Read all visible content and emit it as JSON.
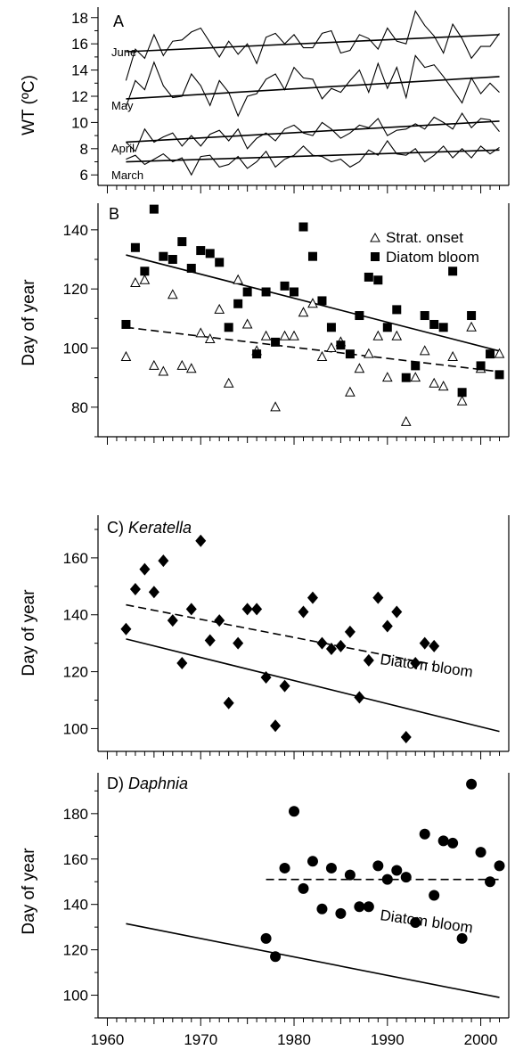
{
  "chart_data": [
    {
      "panel": "A",
      "title": "A",
      "type": "line",
      "ylabel": "WT (ºC)",
      "xlim": [
        1959,
        2003
      ],
      "ylim": [
        5.2,
        18.8
      ],
      "yticks": [
        6,
        8,
        10,
        12,
        14,
        16,
        18
      ],
      "series": [
        {
          "name": "June",
          "x": [
            1962,
            1963,
            1964,
            1965,
            1966,
            1967,
            1968,
            1969,
            1970,
            1971,
            1972,
            1973,
            1974,
            1975,
            1976,
            1977,
            1978,
            1979,
            1980,
            1981,
            1982,
            1983,
            1984,
            1985,
            1986,
            1987,
            1988,
            1989,
            1990,
            1991,
            1992,
            1993,
            1994,
            1995,
            1996,
            1997,
            1998,
            1999,
            2000,
            2001,
            2002
          ],
          "values": [
            13.2,
            15.6,
            14.9,
            16.7,
            15.1,
            16.2,
            16.3,
            16.9,
            17.2,
            16.1,
            15.0,
            16.2,
            15.2,
            16.0,
            14.5,
            16.5,
            16.8,
            16.0,
            16.7,
            15.7,
            15.7,
            16.8,
            17.0,
            15.3,
            15.5,
            16.7,
            16.4,
            15.6,
            17.2,
            16.2,
            16.0,
            18.5,
            17.4,
            16.6,
            15.3,
            17.5,
            16.4,
            14.9,
            15.8,
            15.8,
            16.8
          ]
        },
        {
          "name": "May",
          "x": [
            1962,
            1963,
            1964,
            1965,
            1966,
            1967,
            1968,
            1969,
            1970,
            1971,
            1972,
            1973,
            1974,
            1975,
            1976,
            1977,
            1978,
            1979,
            1980,
            1981,
            1982,
            1983,
            1984,
            1985,
            1986,
            1987,
            1988,
            1989,
            1990,
            1991,
            1992,
            1993,
            1994,
            1995,
            1996,
            1997,
            1998,
            1999,
            2000,
            2001,
            2002
          ],
          "values": [
            11.2,
            13.2,
            12.5,
            14.6,
            12.8,
            11.9,
            12.0,
            13.7,
            12.8,
            11.3,
            13.2,
            12.3,
            10.5,
            12.0,
            12.2,
            13.3,
            13.7,
            12.5,
            14.2,
            13.4,
            13.3,
            11.8,
            12.6,
            12.3,
            13.2,
            14.0,
            12.3,
            14.5,
            12.6,
            14.2,
            11.9,
            15.1,
            14.2,
            14.4,
            13.5,
            12.5,
            11.5,
            13.4,
            12.2,
            13.0,
            12.3
          ]
        },
        {
          "name": "April",
          "x": [
            1962,
            1963,
            1964,
            1965,
            1966,
            1967,
            1968,
            1969,
            1970,
            1971,
            1972,
            1973,
            1974,
            1975,
            1976,
            1977,
            1978,
            1979,
            1980,
            1981,
            1982,
            1983,
            1984,
            1985,
            1986,
            1987,
            1988,
            1989,
            1990,
            1991,
            1992,
            1993,
            1994,
            1995,
            1996,
            1997,
            1998,
            1999,
            2000,
            2001,
            2002
          ],
          "values": [
            8.5,
            7.8,
            9.5,
            8.5,
            8.9,
            9.2,
            8.2,
            9.0,
            8.2,
            9.1,
            9.4,
            8.6,
            9.5,
            8.0,
            8.8,
            9.2,
            8.6,
            9.5,
            9.8,
            9.2,
            9.0,
            10.0,
            9.5,
            8.8,
            9.2,
            9.8,
            9.6,
            10.3,
            9.0,
            9.4,
            9.5,
            9.9,
            9.5,
            10.4,
            10.0,
            9.5,
            10.7,
            9.6,
            10.3,
            10.2,
            9.3
          ]
        },
        {
          "name": "March",
          "x": [
            1962,
            1963,
            1964,
            1965,
            1966,
            1967,
            1968,
            1969,
            1970,
            1971,
            1972,
            1973,
            1974,
            1975,
            1976,
            1977,
            1978,
            1979,
            1980,
            1981,
            1982,
            1983,
            1984,
            1985,
            1986,
            1987,
            1988,
            1989,
            1990,
            1991,
            1992,
            1993,
            1994,
            1995,
            1996,
            1997,
            1998,
            1999,
            2000,
            2001,
            2002
          ],
          "values": [
            7.2,
            7.5,
            6.8,
            7.2,
            7.6,
            7.0,
            7.3,
            6.0,
            7.4,
            7.5,
            6.6,
            6.8,
            7.4,
            6.5,
            7.0,
            7.8,
            6.6,
            7.2,
            7.5,
            8.2,
            7.5,
            7.4,
            7.0,
            7.2,
            6.6,
            7.0,
            7.9,
            7.5,
            8.6,
            7.6,
            7.5,
            8.0,
            7.0,
            7.5,
            8.2,
            7.3,
            8.0,
            7.3,
            8.2,
            7.6,
            8.1
          ]
        }
      ],
      "trendlines": [
        {
          "series": "June",
          "x": [
            1962,
            2002
          ],
          "y": [
            15.4,
            16.7
          ]
        },
        {
          "series": "May",
          "x": [
            1962,
            2002
          ],
          "y": [
            11.8,
            13.5
          ]
        },
        {
          "series": "April",
          "x": [
            1962,
            2002
          ],
          "y": [
            8.5,
            10.1
          ]
        },
        {
          "series": "March",
          "x": [
            1962,
            2002
          ],
          "y": [
            7.0,
            7.9
          ]
        }
      ],
      "annotations": [
        "June",
        "May",
        "April",
        "March"
      ]
    },
    {
      "panel": "B",
      "title": "B",
      "type": "scatter",
      "ylabel": "Day of year",
      "xlim": [
        1959,
        2003
      ],
      "ylim": [
        70,
        149
      ],
      "yticks": [
        80,
        100,
        120,
        140
      ],
      "legend_position": "top-right",
      "series": [
        {
          "name": "Strat. onset",
          "marker": "triangle-open",
          "x": [
            1962,
            1963,
            1964,
            1965,
            1966,
            1967,
            1968,
            1969,
            1970,
            1971,
            1972,
            1973,
            1974,
            1975,
            1976,
            1977,
            1978,
            1979,
            1980,
            1981,
            1982,
            1983,
            1984,
            1985,
            1986,
            1987,
            1988,
            1989,
            1990,
            1991,
            1992,
            1993,
            1994,
            1995,
            1996,
            1997,
            1998,
            1999,
            2000,
            2002
          ],
          "values": [
            97,
            122,
            123,
            94,
            92,
            118,
            94,
            93,
            105,
            103,
            113,
            88,
            123,
            108,
            99,
            104,
            80,
            104,
            104,
            112,
            115,
            97,
            100,
            102,
            85,
            93,
            98,
            104,
            90,
            104,
            75,
            90,
            99,
            88,
            87,
            97,
            82,
            107,
            93,
            98
          ]
        },
        {
          "name": "Diatom bloom",
          "marker": "square-filled",
          "x": [
            1962,
            1963,
            1964,
            1965,
            1966,
            1967,
            1968,
            1969,
            1970,
            1971,
            1972,
            1973,
            1974,
            1975,
            1976,
            1977,
            1978,
            1979,
            1980,
            1981,
            1982,
            1983,
            1984,
            1985,
            1986,
            1987,
            1988,
            1989,
            1990,
            1991,
            1992,
            1993,
            1994,
            1995,
            1996,
            1997,
            1998,
            1999,
            2000,
            2001,
            2002
          ],
          "values": [
            108,
            134,
            126,
            147,
            131,
            130,
            136,
            127,
            133,
            132,
            129,
            107,
            115,
            119,
            98,
            119,
            102,
            121,
            119,
            141,
            131,
            116,
            107,
            101,
            98,
            111,
            124,
            123,
            107,
            113,
            90,
            94,
            111,
            108,
            107,
            126,
            85,
            111,
            94,
            98,
            91
          ]
        }
      ],
      "trendlines": [
        {
          "series": "Diatom bloom",
          "style": "solid",
          "x": [
            1962,
            2002
          ],
          "y": [
            131.5,
            99
          ]
        },
        {
          "series": "Strat. onset",
          "style": "dashed",
          "x": [
            1962,
            2002
          ],
          "y": [
            107,
            92
          ]
        }
      ]
    },
    {
      "panel": "C",
      "title_letter": "C)",
      "title_species": "Keratella",
      "type": "scatter",
      "ylabel": "Day of year",
      "xlim": [
        1959,
        2003
      ],
      "ylim": [
        92,
        175
      ],
      "yticks": [
        100,
        120,
        140,
        160
      ],
      "series": [
        {
          "name": "Keratella",
          "marker": "diamond-filled",
          "x": [
            1962,
            1963,
            1964,
            1965,
            1966,
            1967,
            1968,
            1969,
            1970,
            1971,
            1972,
            1973,
            1974,
            1975,
            1976,
            1977,
            1978,
            1979,
            1981,
            1982,
            1983,
            1984,
            1985,
            1986,
            1987,
            1988,
            1989,
            1990,
            1991,
            1992,
            1993,
            1994,
            1995
          ],
          "values": [
            135,
            149,
            156,
            148,
            159,
            138,
            123,
            142,
            166,
            131,
            138,
            109,
            130,
            142,
            142,
            118,
            101,
            115,
            141,
            146,
            130,
            128,
            129,
            134,
            111,
            124,
            146,
            136,
            141,
            97,
            123,
            130,
            129
          ]
        }
      ],
      "trendlines": [
        {
          "series": "Keratella",
          "style": "dashed",
          "x": [
            1962,
            1995
          ],
          "y": [
            143.5,
            122.5
          ]
        },
        {
          "series": "Diatom bloom",
          "style": "solid",
          "x": [
            1962,
            2002
          ],
          "y": [
            131.5,
            99
          ]
        }
      ],
      "annotations": [
        "Diatom bloom"
      ]
    },
    {
      "panel": "D",
      "title_letter": "D)",
      "title_species": "Daphnia",
      "type": "scatter",
      "ylabel": "Day of year",
      "xlabel": "",
      "xlim": [
        1959,
        2003
      ],
      "ylim": [
        90,
        198
      ],
      "yticks": [
        100,
        120,
        140,
        160,
        180
      ],
      "xticks": [
        1960,
        1970,
        1980,
        1990,
        2000
      ],
      "series": [
        {
          "name": "Daphnia",
          "marker": "circle-filled",
          "x": [
            1977,
            1978,
            1979,
            1980,
            1981,
            1982,
            1983,
            1984,
            1985,
            1986,
            1987,
            1988,
            1989,
            1990,
            1991,
            1992,
            1993,
            1994,
            1995,
            1996,
            1997,
            1998,
            1999,
            2000,
            2001,
            2002
          ],
          "values": [
            125,
            117,
            156,
            181,
            147,
            159,
            138,
            156,
            136,
            153,
            139,
            139,
            157,
            151,
            155,
            152,
            132,
            171,
            144,
            168,
            167,
            125,
            193,
            163,
            150,
            157
          ]
        }
      ],
      "trendlines": [
        {
          "series": "Daphnia",
          "style": "dashed",
          "x": [
            1977,
            2002
          ],
          "y": [
            151,
            151
          ]
        },
        {
          "series": "Diatom bloom",
          "style": "solid",
          "x": [
            1962,
            2002
          ],
          "y": [
            131.5,
            99
          ]
        }
      ],
      "annotations": [
        "Diatom bloom"
      ]
    }
  ]
}
